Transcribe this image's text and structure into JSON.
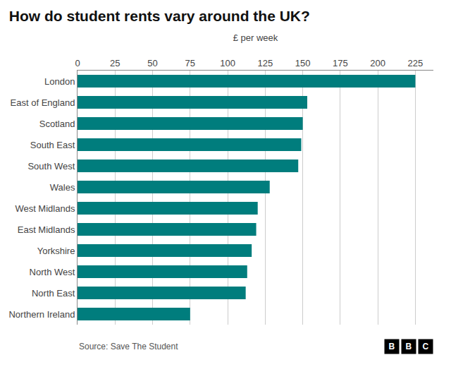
{
  "chart_data": {
    "type": "bar",
    "orientation": "horizontal",
    "title": "How do student rents vary around the UK?",
    "xlabel": "£ per week",
    "categories": [
      "London",
      "East of England",
      "Scotland",
      "South East",
      "South West",
      "Wales",
      "West Midlands",
      "East Midlands",
      "Yorkshire",
      "North West",
      "North East",
      "Northern Ireland"
    ],
    "values": [
      225,
      153,
      150,
      149,
      147,
      128,
      120,
      119,
      116,
      113,
      112,
      75
    ],
    "color": "#007d7d",
    "xlim": [
      0,
      237
    ],
    "xticks": [
      0,
      25,
      50,
      75,
      100,
      125,
      150,
      175,
      200,
      225
    ],
    "grid": true,
    "annotations": [
      "Source: Save The Student",
      "BBC"
    ]
  }
}
